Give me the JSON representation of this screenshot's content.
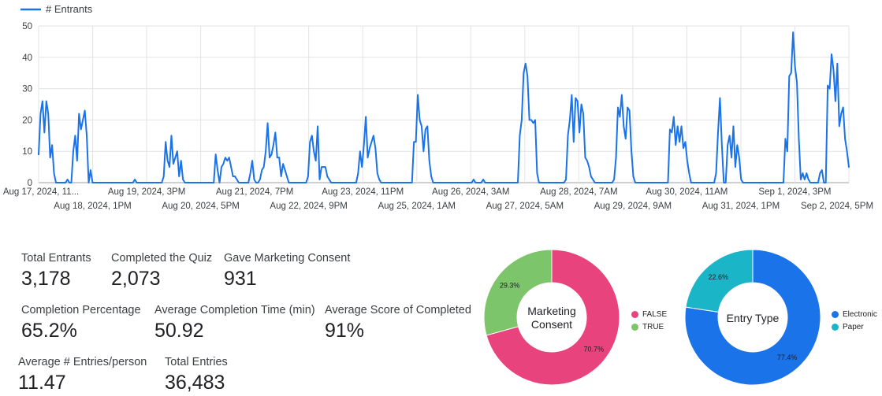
{
  "chart_data": {
    "type": "line",
    "series": [
      {
        "name": "# Entrants",
        "color": "#1a73e8",
        "values": [
          9,
          22,
          26,
          16,
          26,
          22,
          8,
          12,
          3,
          0,
          0,
          0,
          0,
          0,
          0,
          1,
          0,
          0,
          10,
          15,
          7,
          22,
          17,
          20,
          23,
          15,
          0,
          4,
          0,
          0,
          0,
          0,
          0,
          0,
          0,
          0,
          0,
          0,
          0,
          0,
          0,
          0,
          0,
          0,
          0,
          0,
          0,
          0,
          0,
          0,
          1,
          0,
          0,
          0,
          0,
          0,
          0,
          0,
          0,
          0,
          0,
          0,
          0,
          0,
          0,
          2,
          13,
          7,
          5,
          15,
          6,
          8,
          10,
          2,
          7,
          1,
          0,
          0,
          0,
          0,
          0,
          0,
          0,
          0,
          0,
          0,
          0,
          0,
          0,
          0,
          0,
          0,
          9,
          4,
          0,
          5,
          6,
          8,
          7,
          8,
          5,
          2,
          2,
          1,
          0,
          0,
          0,
          0,
          0,
          0,
          3,
          7,
          1,
          0,
          0,
          1,
          4,
          5,
          10,
          19,
          8,
          9,
          12,
          16,
          8,
          8,
          2,
          6,
          4,
          2,
          0,
          0,
          0,
          0,
          0,
          0,
          0,
          0,
          0,
          0,
          2,
          13,
          15,
          10,
          7,
          18,
          1,
          5,
          5,
          5,
          2,
          1,
          0,
          0,
          0,
          0,
          0,
          0,
          0,
          0,
          0,
          0,
          0,
          0,
          0,
          0,
          3,
          10,
          5,
          12,
          21,
          8,
          11,
          13,
          15,
          11,
          3,
          1,
          0,
          0,
          0,
          0,
          0,
          0,
          0,
          0,
          0,
          0,
          0,
          0,
          0,
          0,
          0,
          0,
          0,
          13,
          13,
          28,
          20,
          18,
          10,
          17,
          18,
          7,
          2,
          0,
          0,
          0,
          0,
          0,
          0,
          0,
          0,
          0,
          0,
          0,
          0,
          0,
          0,
          0,
          0,
          0,
          0,
          0,
          0,
          0,
          1,
          0,
          0,
          0,
          0,
          1,
          0,
          0,
          0,
          0,
          0,
          0,
          0,
          0,
          0,
          0,
          0,
          0,
          0,
          0,
          0,
          0,
          0,
          0,
          15,
          20,
          35,
          38,
          34,
          20,
          20,
          19,
          20,
          3,
          0,
          0,
          0,
          0,
          0,
          0,
          0,
          0,
          0,
          0,
          0,
          0,
          0,
          0,
          1,
          15,
          20,
          28,
          13,
          27,
          26,
          16,
          25,
          22,
          8,
          7,
          5,
          2,
          1,
          0,
          0,
          0,
          0,
          0,
          0,
          0,
          0,
          0,
          0,
          1,
          8,
          24,
          21,
          28,
          18,
          14,
          24,
          23,
          10,
          2,
          0,
          0,
          0,
          0,
          0,
          0,
          0,
          0,
          0,
          0,
          0,
          0,
          0,
          0,
          0,
          0,
          0,
          0,
          17,
          16,
          21,
          12,
          18,
          13,
          18,
          11,
          13,
          7,
          3,
          0,
          0,
          0,
          0,
          0,
          0,
          0,
          0,
          0,
          0,
          0,
          0,
          0,
          3,
          16,
          27,
          12,
          0,
          0,
          12,
          15,
          8,
          18,
          5,
          12,
          8,
          1,
          0,
          0,
          0,
          0,
          0,
          0,
          0,
          0,
          0,
          0,
          0,
          0,
          0,
          0,
          0,
          0,
          0,
          0,
          0,
          0,
          0,
          0,
          14,
          10,
          34,
          35,
          48,
          37,
          32,
          14,
          1,
          3,
          1,
          3,
          1,
          0,
          0,
          0,
          0,
          0,
          3,
          4,
          0,
          0,
          31,
          30,
          41,
          36,
          26,
          38,
          18,
          22,
          24,
          14,
          10,
          5
        ]
      }
    ],
    "x_tick_labels": [
      "Aug 17, 2024, 11...",
      "Aug 18, 2024, 1PM",
      "Aug 19, 2024, 3PM",
      "Aug 20, 2024, 5PM",
      "Aug 21, 2024, 7PM",
      "Aug 22, 2024, 9PM",
      "Aug 23, 2024, 11PM",
      "Aug 25, 2024, 1AM",
      "Aug 26, 2024, 3AM",
      "Aug 27, 2024, 5AM",
      "Aug 28, 2024, 7AM",
      "Aug 29, 2024, 9AM",
      "Aug 30, 2024, 11AM",
      "Aug 31, 2024, 1PM",
      "Sep 1, 2024, 3PM",
      "Sep 2, 2024, 5PM"
    ],
    "y_ticks": [
      0,
      10,
      20,
      30,
      40,
      50
    ],
    "ylim": [
      0,
      50
    ],
    "grid": true,
    "legend_position": "top-left"
  },
  "kpis": [
    {
      "label": "Total Entrants",
      "value": "3,178"
    },
    {
      "label": "Completed the Quiz",
      "value": "2,073"
    },
    {
      "label": "Gave Marketing Consent",
      "value": "931"
    },
    {
      "label": "Completion Percentage",
      "value": "65.2%"
    },
    {
      "label": "Average Completion Time (min)",
      "value": "50.92"
    },
    {
      "label": "Average Score of Completed",
      "value": "91%"
    },
    {
      "label": "Average # Entries/person",
      "value": "11.47"
    },
    {
      "label": "Total Entries",
      "value": "36,483"
    }
  ],
  "donuts": [
    {
      "center_label_line1": "Marketing",
      "center_label_line2": "Consent",
      "type": "pie",
      "slices": [
        {
          "name": "FALSE",
          "value": 70.7,
          "label": "70.7%",
          "color": "#e8437c"
        },
        {
          "name": "TRUE",
          "value": 29.3,
          "label": "29.3%",
          "color": "#7cc56a"
        }
      ]
    },
    {
      "center_label_line1": "Entry Type",
      "center_label_line2": "",
      "type": "pie",
      "slices": [
        {
          "name": "Electronic",
          "value": 77.4,
          "label": "77.4%",
          "color": "#1a73e8"
        },
        {
          "name": "Paper",
          "value": 22.6,
          "label": "22.6%",
          "color": "#1bb5c8"
        }
      ]
    }
  ]
}
